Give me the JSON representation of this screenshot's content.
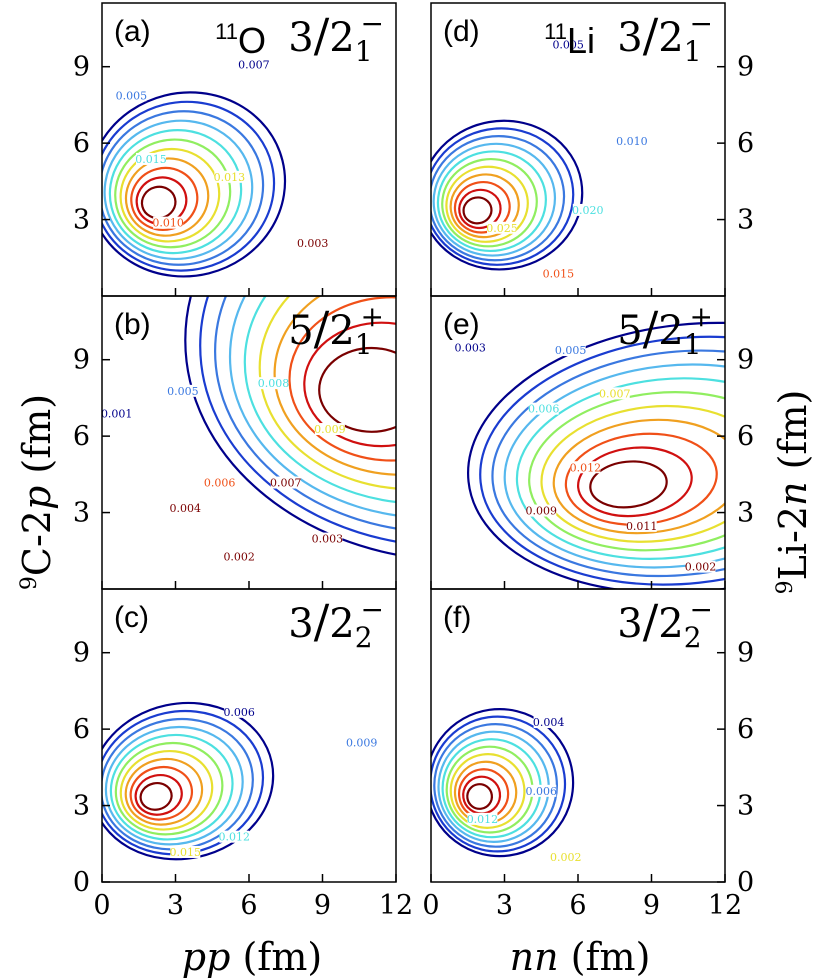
{
  "chart_data": {
    "type": "contour",
    "y_axis_left": {
      "label_sup": "9",
      "label_main": "C-2",
      "label_ital": "p",
      "label_unit": " (fm)",
      "ticks": [
        "0",
        "3",
        "6",
        "9"
      ]
    },
    "y_axis_right": {
      "label_sup": "9",
      "label_main": "Li-2",
      "label_ital": "n",
      "label_unit": " (fm)",
      "ticks": [
        "0",
        "3",
        "6",
        "9"
      ]
    },
    "x_axis_left": {
      "label_ital": "pp",
      "label_unit": " (fm)",
      "ticks": [
        "0",
        "3",
        "6",
        "9",
        "12"
      ]
    },
    "x_axis_right": {
      "label_ital": "nn",
      "label_unit": " (fm)",
      "ticks": [
        "0",
        "3",
        "6",
        "9",
        "12"
      ]
    },
    "xlim": [
      0,
      12
    ],
    "ylim": [
      0,
      11.5
    ],
    "colors": [
      "#00008b",
      "#1a3cd0",
      "#3a78e0",
      "#56b8ee",
      "#4de0e0",
      "#90ee60",
      "#e8e030",
      "#f0a020",
      "#f05018",
      "#d01010",
      "#7a0000"
    ],
    "panels": [
      {
        "id": "a",
        "label": "(a)",
        "nucleus_sup": "11",
        "nucleus": "O",
        "j_num": "3",
        "j_den": "2",
        "j_sub": "1",
        "j_sup": "−",
        "center": [
          2.2,
          3.6
        ],
        "sx": 1.4,
        "sy": 1.3,
        "tilt": 0.35,
        "levels": 11,
        "spread": 10.5,
        "contour_labels": [
          {
            "text": "0.007",
            "x": 6.2,
            "y": 9.0
          },
          {
            "text": "0.005",
            "x": 1.2,
            "y": 7.8
          },
          {
            "text": "0.015",
            "x": 2.0,
            "y": 5.3
          },
          {
            "text": "0.013",
            "x": 5.2,
            "y": 4.6
          },
          {
            "text": "0.010",
            "x": 2.7,
            "y": 2.8
          },
          {
            "text": "0.003",
            "x": 8.6,
            "y": 2.0
          }
        ]
      },
      {
        "id": "b",
        "label": "(b)",
        "nucleus_sup": "",
        "nucleus": "",
        "j_num": "5",
        "j_den": "2",
        "j_sub": "1",
        "j_sup": "+",
        "center": [
          10.6,
          7.6
        ],
        "sx": 4.5,
        "sy": 3.6,
        "tilt": 0.0,
        "levels": 10,
        "spread": 9.0,
        "contour_labels": [
          {
            "text": "0.001",
            "x": 0.6,
            "y": 6.8
          },
          {
            "text": "0.005",
            "x": 3.3,
            "y": 7.7
          },
          {
            "text": "0.008",
            "x": 7.0,
            "y": 8.0
          },
          {
            "text": "0.009",
            "x": 9.3,
            "y": 6.2
          },
          {
            "text": "0.006",
            "x": 4.8,
            "y": 4.1
          },
          {
            "text": "0.007",
            "x": 7.5,
            "y": 4.1
          },
          {
            "text": "0.004",
            "x": 3.4,
            "y": 3.1
          },
          {
            "text": "0.003",
            "x": 9.2,
            "y": 1.9
          },
          {
            "text": "0.002",
            "x": 5.6,
            "y": 1.2
          }
        ]
      },
      {
        "id": "c",
        "label": "(c)",
        "nucleus_sup": "",
        "nucleus": "",
        "j_num": "3",
        "j_den": "2",
        "j_sub": "2",
        "j_sup": "−",
        "center": [
          2.1,
          3.3
        ],
        "sx": 1.3,
        "sy": 1.1,
        "tilt": 0.3,
        "levels": 11,
        "spread": 10.5,
        "contour_labels": [
          {
            "text": "0.006",
            "x": 5.6,
            "y": 6.6
          },
          {
            "text": "0.009",
            "x": 10.6,
            "y": 5.4
          },
          {
            "text": "0.012",
            "x": 5.4,
            "y": 1.7
          },
          {
            "text": "0.015",
            "x": 3.4,
            "y": 1.1
          }
        ]
      },
      {
        "id": "d",
        "label": "(d)",
        "nucleus_sup": "11",
        "nucleus": "Li",
        "j_num": "3",
        "j_den": "2",
        "j_sub": "1",
        "j_sup": "−",
        "center": [
          1.8,
          3.3
        ],
        "sx": 1.2,
        "sy": 1.1,
        "tilt": 0.25,
        "levels": 11,
        "spread": 10.0,
        "contour_labels": [
          {
            "text": "0.005",
            "x": 5.6,
            "y": 9.8
          },
          {
            "text": "0.010",
            "x": 8.2,
            "y": 6.0
          },
          {
            "text": "0.020",
            "x": 6.4,
            "y": 3.3
          },
          {
            "text": "0.025",
            "x": 2.9,
            "y": 2.6
          },
          {
            "text": "0.015",
            "x": 5.2,
            "y": 0.8
          }
        ]
      },
      {
        "id": "e",
        "label": "(e)",
        "nucleus_sup": "",
        "nucleus": "",
        "j_num": "5",
        "j_den": "2",
        "j_sub": "1",
        "j_sup": "+",
        "center": [
          7.8,
          4.0
        ],
        "sx": 3.2,
        "sy": 1.9,
        "tilt": 0.15,
        "levels": 11,
        "spread": 10.5,
        "contour_labels": [
          {
            "text": "0.003",
            "x": 1.6,
            "y": 9.4
          },
          {
            "text": "0.005",
            "x": 5.7,
            "y": 9.3
          },
          {
            "text": "0.006",
            "x": 4.6,
            "y": 7.0
          },
          {
            "text": "0.007",
            "x": 7.5,
            "y": 7.6
          },
          {
            "text": "0.012",
            "x": 6.3,
            "y": 4.7
          },
          {
            "text": "0.009",
            "x": 4.5,
            "y": 3.0
          },
          {
            "text": "0.011",
            "x": 8.6,
            "y": 2.4
          },
          {
            "text": "0.002",
            "x": 11.0,
            "y": 0.8
          }
        ]
      },
      {
        "id": "f",
        "label": "(f)",
        "nucleus_sup": "",
        "nucleus": "",
        "j_num": "3",
        "j_den": "2",
        "j_sub": "2",
        "j_sup": "−",
        "center": [
          1.9,
          3.3
        ],
        "sx": 1.0,
        "sy": 1.0,
        "tilt": 0.2,
        "levels": 11,
        "spread": 11.0,
        "contour_labels": [
          {
            "text": "0.004",
            "x": 4.8,
            "y": 6.2
          },
          {
            "text": "0.006",
            "x": 4.5,
            "y": 3.5
          },
          {
            "text": "0.012",
            "x": 2.1,
            "y": 2.4
          },
          {
            "text": "0.002",
            "x": 5.5,
            "y": 0.9
          }
        ]
      }
    ]
  }
}
